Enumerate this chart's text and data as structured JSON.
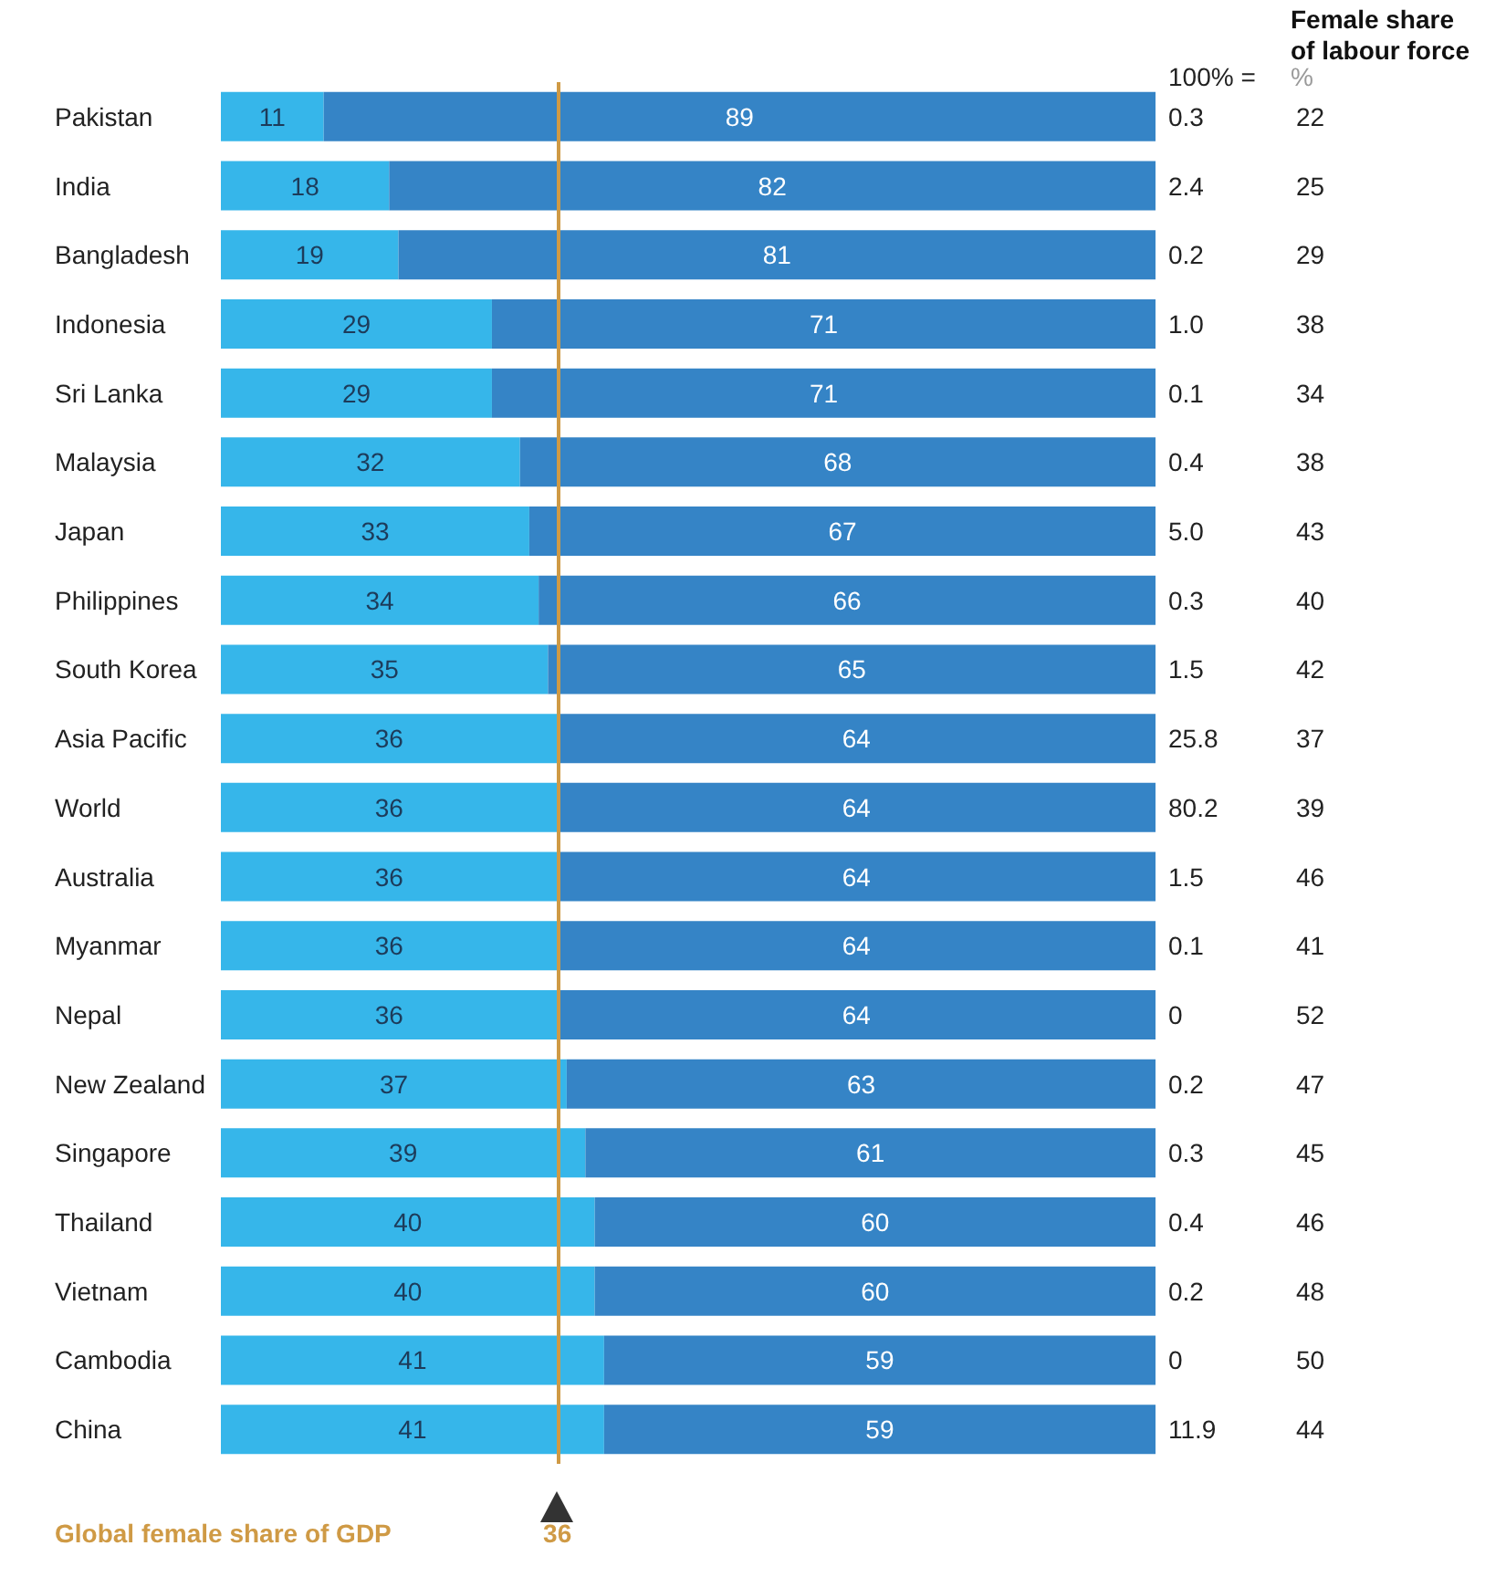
{
  "chart_data": [
    {
      "type": "bar",
      "orientation": "horizontal",
      "stacked": true,
      "categories": [
        "Pakistan",
        "India",
        "Bangladesh",
        "Indonesia",
        "Sri Lanka",
        "Malaysia",
        "Japan",
        "Philippines",
        "South Korea",
        "Asia Pacific",
        "World",
        "Australia",
        "Myanmar",
        "Nepal",
        "New Zealand",
        "Singapore",
        "Thailand",
        "Vietnam",
        "Cambodia",
        "China"
      ],
      "series": [
        {
          "color": "#36b6ea",
          "values": [
            11,
            18,
            19,
            29,
            29,
            32,
            33,
            34,
            35,
            36,
            36,
            36,
            36,
            36,
            37,
            39,
            40,
            40,
            41,
            41
          ]
        },
        {
          "color": "#3584c6",
          "values": [
            89,
            82,
            81,
            71,
            71,
            68,
            67,
            66,
            65,
            64,
            64,
            64,
            64,
            64,
            63,
            61,
            60,
            60,
            59,
            59
          ]
        }
      ],
      "data_labels": true,
      "tick_labels": "y",
      "ref_lines": [
        {
          "axis": "x",
          "value": 36,
          "label": "Global female share of GDP",
          "color": "#cf9a45"
        }
      ],
      "annotations": [
        "36"
      ]
    },
    {
      "type": "other",
      "title": "100% =",
      "categories": [
        null,
        null,
        null,
        null,
        null,
        null,
        null,
        null,
        null,
        null,
        null,
        null,
        null,
        null,
        null,
        null,
        null,
        null,
        null,
        null
      ],
      "values": [
        0.3,
        2.4,
        0.2,
        1.0,
        0.1,
        0.4,
        5.0,
        0.3,
        1.5,
        25.8,
        80.2,
        1.5,
        0.1,
        0,
        0.2,
        0.3,
        0.4,
        0.2,
        0,
        11.9
      ],
      "value_labels": [
        "0.3",
        "2.4",
        "0.2",
        "1.0",
        "0.1",
        "0.4",
        "5.0",
        "0.3",
        "1.5",
        "25.8",
        "80.2",
        "1.5",
        "0.1",
        "0",
        "0.2",
        "0.3",
        "0.4",
        "0.2",
        "0",
        "11.9"
      ]
    },
    {
      "type": "other",
      "title": "Female share of labour force",
      "subtitle": "%",
      "categories": [
        null,
        null,
        null,
        null,
        null,
        null,
        null,
        null,
        null,
        null,
        null,
        null,
        null,
        null,
        null,
        null,
        null,
        null,
        null,
        null
      ],
      "values": [
        22,
        25,
        29,
        38,
        34,
        38,
        43,
        40,
        42,
        37,
        39,
        46,
        41,
        52,
        47,
        45,
        46,
        48,
        50,
        44
      ],
      "data_labels": true
    }
  ]
}
